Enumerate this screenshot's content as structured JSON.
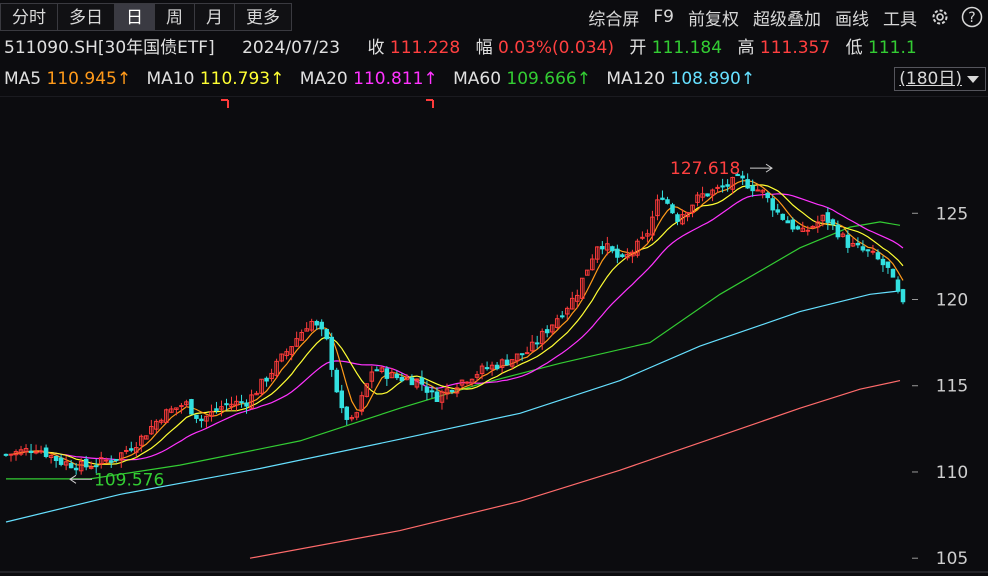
{
  "toolbar": {
    "tabs": [
      {
        "label": "分时",
        "active": false
      },
      {
        "label": "多日",
        "active": false
      },
      {
        "label": "日",
        "active": true
      },
      {
        "label": "周",
        "active": false
      },
      {
        "label": "月",
        "active": false
      },
      {
        "label": "更多",
        "active": false
      }
    ],
    "tools": [
      "综合屏",
      "F9",
      "前复权",
      "超级叠加",
      "画线",
      "工具"
    ],
    "icons": [
      "gear-icon",
      "help-icon"
    ]
  },
  "info": {
    "code": "511090.SH[30年国债ETF]",
    "date": "2024/07/23",
    "close_label": "收",
    "close": "111.228",
    "change_label": "幅",
    "change": "0.03%(0.034)",
    "open_label": "开",
    "open": "111.184",
    "high_label": "高",
    "high": "111.357",
    "low_label": "低",
    "low": "111.1"
  },
  "ma": [
    {
      "name": "MA5",
      "value": "110.945↑",
      "color": "#ff9a1a"
    },
    {
      "name": "MA10",
      "value": "110.793↑",
      "color": "#ffff33"
    },
    {
      "name": "MA20",
      "value": "110.811↑",
      "color": "#ff33ff"
    },
    {
      "name": "MA60",
      "value": "109.666↑",
      "color": "#33cc33"
    },
    {
      "name": "MA120",
      "value": "108.890↑",
      "color": "#66e0ff"
    }
  ],
  "period": {
    "label": "(180日)"
  },
  "chart_data": {
    "type": "candlestick",
    "y_ticks": [
      105,
      110,
      115,
      120,
      125
    ],
    "ylim": [
      104.2,
      131.8
    ],
    "annotations": [
      {
        "text": "127.618",
        "value": 127.618,
        "color": "#ff4040"
      },
      {
        "text": "109.576",
        "value": 109.576,
        "color": "#33cc33"
      }
    ],
    "colors": {
      "up": "#ff3b3b",
      "down": "#33e0e0",
      "ma5": "#ff9a1a",
      "ma10": "#ffff33",
      "ma20": "#ff33ff",
      "ma60": "#33cc33",
      "ma120": "#66e0ff",
      "ma250": "#ff6b6b"
    }
  }
}
